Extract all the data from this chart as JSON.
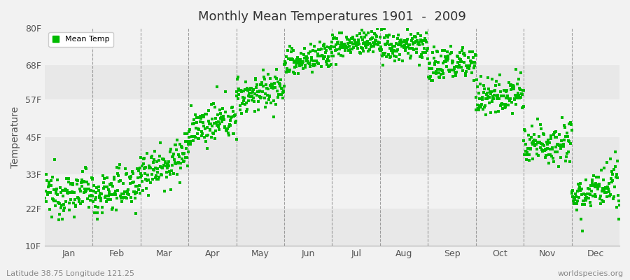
{
  "title": "Monthly Mean Temperatures 1901  -  2009",
  "ylabel": "Temperature",
  "subtitle_left": "Latitude 38.75 Longitude 121.25",
  "subtitle_right": "worldspecies.org",
  "ytick_labels": [
    "10F",
    "22F",
    "33F",
    "45F",
    "57F",
    "68F",
    "80F"
  ],
  "ytick_values": [
    10,
    22,
    33,
    45,
    57,
    68,
    80
  ],
  "xtick_labels": [
    "Jan",
    "Feb",
    "Mar",
    "Apr",
    "May",
    "Jun",
    "Jul",
    "Aug",
    "Sep",
    "Oct",
    "Nov",
    "Dec"
  ],
  "dot_color": "#00bb00",
  "background_color": "#f2f2f2",
  "plot_bg_color": "#f2f2f2",
  "n_years": 109,
  "monthly_means_start": [
    26,
    26,
    34,
    47,
    58,
    68,
    74,
    73,
    67,
    57,
    41,
    26
  ],
  "monthly_means_end": [
    28,
    30,
    39,
    51,
    61,
    72,
    76,
    75,
    70,
    60,
    45,
    29
  ],
  "monthly_spreads": [
    3.5,
    3.5,
    3.5,
    3.0,
    3.0,
    2.5,
    2.0,
    2.5,
    3.0,
    3.0,
    3.5,
    3.5
  ],
  "xmin": 0,
  "xmax": 12,
  "ymin": 10,
  "ymax": 80,
  "figsize": [
    9.0,
    4.0
  ],
  "dpi": 100
}
